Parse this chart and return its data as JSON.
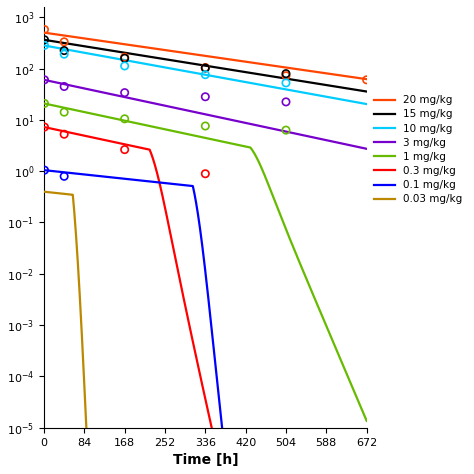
{
  "colors": [
    "#ff4500",
    "#000000",
    "#00ccff",
    "#7700cc",
    "#66bb00",
    "#ff0000",
    "#0000ff",
    "#bb8800"
  ],
  "labels": [
    "20 mg/kg",
    "15 mg/kg",
    "10 mg/kg",
    "3 mg/kg",
    "1 mg/kg",
    "0.3 mg/kg",
    "0.1 mg/kg",
    "0.03 mg/kg"
  ],
  "xlabel": "Time [h]",
  "xlim": [
    0,
    672
  ],
  "ylim": [
    -5.0,
    3.2
  ],
  "xticks": [
    0,
    84,
    168,
    252,
    336,
    420,
    504,
    588,
    672
  ],
  "yticks": [
    -5,
    -4,
    -3,
    -2,
    -1,
    0,
    1,
    2,
    3
  ],
  "obs_list": [
    {
      "t": [
        1,
        42,
        168,
        336,
        504,
        672
      ],
      "y": [
        2.76,
        2.52,
        2.22,
        2.02,
        1.86,
        1.78
      ]
    },
    {
      "t": [
        1,
        42,
        168,
        336,
        504
      ],
      "y": [
        2.56,
        2.35,
        2.2,
        2.01,
        1.9
      ]
    },
    {
      "t": [
        1,
        42,
        168,
        336,
        504
      ],
      "y": [
        2.45,
        2.28,
        2.05,
        1.88,
        1.72
      ]
    },
    {
      "t": [
        1,
        42,
        168,
        336,
        504
      ],
      "y": [
        1.78,
        1.65,
        1.53,
        1.45,
        1.35
      ]
    },
    {
      "t": [
        1,
        42,
        168,
        336,
        504
      ],
      "y": [
        1.32,
        1.15,
        1.02,
        0.88,
        0.8
      ]
    },
    {
      "t": [
        1,
        42,
        168,
        336
      ],
      "y": [
        0.86,
        0.72,
        0.42,
        -0.05
      ]
    },
    {
      "t": [
        1,
        42
      ],
      "y": [
        0.02,
        -0.1
      ]
    },
    {
      "t": [],
      "y": []
    }
  ]
}
